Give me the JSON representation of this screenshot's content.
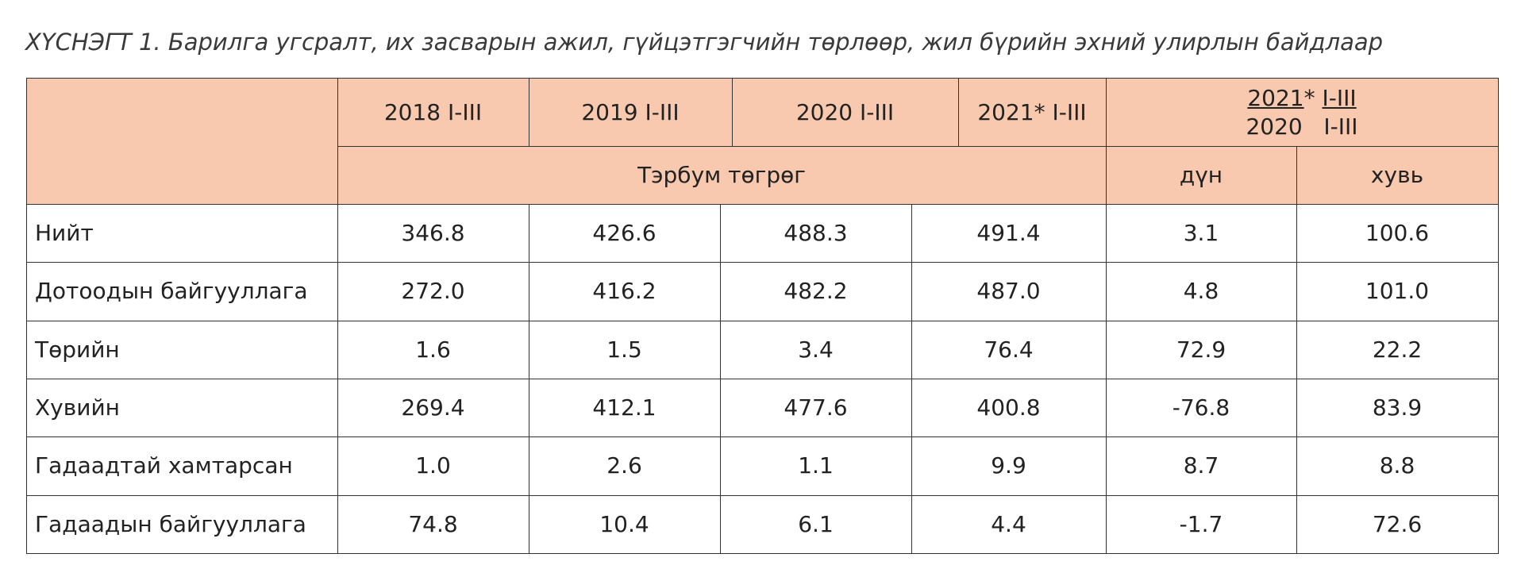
{
  "title": "ХҮСНЭГТ 1. Барилга угсралт, их засварын ажил, гүйцэтгэгчийн төрлөөр, жил бүрийн эхний улирлын байдлаар",
  "header": {
    "periods": [
      "2018 I-III",
      "2019 I-III",
      "2020 I-III",
      "2021* I-III"
    ],
    "unit": "Тэрбум төгрөг",
    "ratio_num_year": "2021",
    "ratio_num_star": "*",
    "ratio_num_period": "I-III",
    "ratio_den": "2020   I-III",
    "diff": "дүн",
    "pct": "хувь"
  },
  "rows": [
    {
      "label": "Нийт",
      "values": [
        "346.8",
        "426.6",
        "488.3",
        "491.4",
        "3.1",
        "100.6"
      ]
    },
    {
      "label": "Дотоодын байгууллага",
      "values": [
        "272.0",
        "416.2",
        "482.2",
        "487.0",
        "4.8",
        "101.0"
      ]
    },
    {
      "label": "Төрийн",
      "values": [
        "1.6",
        "1.5",
        "3.4",
        "76.4",
        "72.9",
        "22.2"
      ]
    },
    {
      "label": "Хувийн",
      "values": [
        "269.4",
        "412.1",
        "477.6",
        "400.8",
        "-76.8",
        "83.9"
      ]
    },
    {
      "label": "Гадаадтай хамтарсан",
      "values": [
        "1.0",
        "2.6",
        "1.1",
        "9.9",
        "8.7",
        "8.8"
      ]
    },
    {
      "label": "Гадаадын байгууллага",
      "values": [
        "74.8",
        "10.4",
        "6.1",
        "4.4",
        "-1.7",
        "72.6"
      ]
    }
  ],
  "colors": {
    "header_bg": "#f8c9ae",
    "border": "#333333"
  }
}
